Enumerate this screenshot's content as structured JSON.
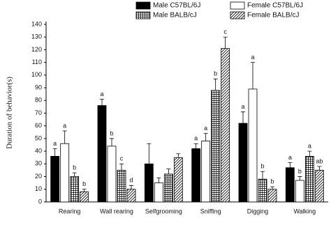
{
  "chart_data": {
    "type": "bar",
    "y_label": "Duration of behavior(s)",
    "categories": [
      "Rearing",
      "Wall rearing",
      "Selfgrooming",
      "Sniffing",
      "Digging",
      "Walking"
    ],
    "series": [
      {
        "name": "Male C57BL/6J",
        "color": "#000000",
        "pattern": "solid",
        "values": [
          36,
          76,
          30,
          42,
          62,
          27
        ],
        "errors": [
          6,
          5,
          16,
          4,
          9,
          4
        ],
        "letters": [
          "a",
          "a",
          null,
          "a",
          "a",
          "a"
        ]
      },
      {
        "name": "Female C57BL/6J",
        "color": "#ffffff",
        "pattern": "solid",
        "values": [
          46,
          44,
          15,
          48,
          89,
          17
        ],
        "errors": [
          10,
          6,
          4,
          6,
          21,
          3
        ],
        "letters": [
          "a",
          "b",
          null,
          "a",
          "a",
          "b"
        ]
      },
      {
        "name": "Male BALB/cJ",
        "color": "#000000",
        "pattern": "grid",
        "values": [
          20,
          25,
          22,
          88,
          18,
          36
        ],
        "errors": [
          3,
          5,
          4,
          9,
          6,
          4
        ],
        "letters": [
          "b",
          "c",
          null,
          "b",
          "b",
          "a"
        ]
      },
      {
        "name": "Female BALB/cJ",
        "color": "#000000",
        "pattern": "hatch",
        "values": [
          8,
          10,
          35,
          121,
          10,
          25
        ],
        "errors": [
          2,
          3,
          3,
          9,
          2,
          3
        ],
        "letters": [
          "b",
          "d",
          null,
          "c",
          "b",
          "ab"
        ]
      }
    ],
    "ylim": [
      0,
      140
    ],
    "yticks": [
      0,
      10,
      20,
      30,
      40,
      50,
      60,
      70,
      80,
      90,
      100,
      110,
      120,
      130,
      140
    ],
    "grid": false,
    "legend": "top"
  }
}
